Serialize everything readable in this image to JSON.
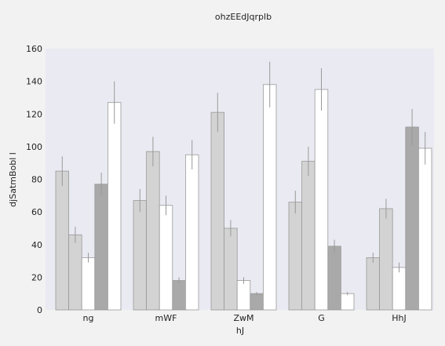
{
  "chart_data": {
    "type": "bar",
    "title": "ohzEEdJqrplb",
    "xlabel": "hJ",
    "ylabel": "djSatmBobl l",
    "ylim": [
      0,
      160
    ],
    "yticks": [
      0,
      20,
      40,
      60,
      80,
      100,
      120,
      140,
      160
    ],
    "categories": [
      "ng",
      "mWF",
      "ZwM",
      "G",
      "HhJ"
    ],
    "grid": false,
    "legend": "none",
    "series": [
      {
        "values": [
          85,
          67,
          121,
          66,
          32
        ],
        "errors": [
          9,
          7,
          12,
          7,
          3
        ],
        "color": "#d3d3d3"
      },
      {
        "values": [
          46,
          97,
          50,
          91,
          62
        ],
        "errors": [
          5,
          9,
          5,
          9,
          6
        ],
        "color": "#d3d3d3"
      },
      {
        "values": [
          32,
          64,
          18,
          135,
          26
        ],
        "errors": [
          3,
          6,
          2,
          13,
          3
        ],
        "color": "#ffffff"
      },
      {
        "values": [
          77,
          18,
          10,
          39,
          112
        ],
        "errors": [
          7,
          2,
          1,
          4,
          11
        ],
        "color": "#a9a9a9"
      },
      {
        "values": [
          127,
          95,
          138,
          10,
          99
        ],
        "errors": [
          13,
          9,
          14,
          1,
          10
        ],
        "color": "#ffffff"
      }
    ],
    "colors": {
      "plot_background": "#eaeaf2",
      "page_background": "#f2f2f2",
      "bar_edge": "#999999",
      "error_bar": "#999999"
    }
  }
}
